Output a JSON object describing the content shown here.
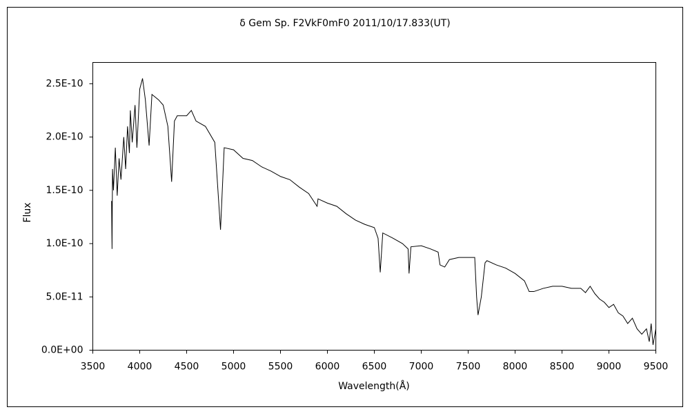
{
  "chart_data": {
    "type": "line",
    "title": "δ Gem   Sp. F2VkF0mF0   2011/10/17.833(UT)",
    "x_label": "Wavelength(Å)",
    "y_label": "Flux",
    "color": "#000000",
    "x": [
      3700,
      3705,
      3710,
      3720,
      3740,
      3760,
      3780,
      3800,
      3830,
      3850,
      3870,
      3890,
      3900,
      3920,
      3950,
      3970,
      4000,
      4030,
      4060,
      4100,
      4130,
      4200,
      4250,
      4300,
      4340,
      4370,
      4400,
      4500,
      4550,
      4600,
      4700,
      4800,
      4861,
      4900,
      5000,
      5100,
      5200,
      5300,
      5400,
      5500,
      5600,
      5700,
      5800,
      5890,
      5900,
      6000,
      6100,
      6200,
      6300,
      6400,
      6500,
      6540,
      6563,
      6590,
      6700,
      6800,
      6860,
      6870,
      6890,
      7000,
      7100,
      7180,
      7200,
      7250,
      7300,
      7400,
      7500,
      7570,
      7590,
      7605,
      7640,
      7680,
      7700,
      7800,
      7900,
      8000,
      8100,
      8150,
      8200,
      8300,
      8400,
      8500,
      8600,
      8700,
      8750,
      8800,
      8850,
      8900,
      8950,
      9000,
      9050,
      9100,
      9150,
      9200,
      9250,
      9300,
      9350,
      9400,
      9430,
      9450,
      9470,
      9500
    ],
    "values": [
      1.4e-10,
      9.5e-11,
      1.7e-10,
      1.5e-10,
      1.9e-10,
      1.45e-10,
      1.8e-10,
      1.6e-10,
      2e-10,
      1.7e-10,
      2.1e-10,
      1.85e-10,
      2.25e-10,
      1.95e-10,
      2.3e-10,
      1.9e-10,
      2.45e-10,
      2.55e-10,
      2.35e-10,
      1.92e-10,
      2.4e-10,
      2.35e-10,
      2.3e-10,
      2.1e-10,
      1.58e-10,
      2.15e-10,
      2.2e-10,
      2.2e-10,
      2.25e-10,
      2.15e-10,
      2.1e-10,
      1.95e-10,
      1.13e-10,
      1.9e-10,
      1.88e-10,
      1.8e-10,
      1.78e-10,
      1.72e-10,
      1.68e-10,
      1.63e-10,
      1.6e-10,
      1.53e-10,
      1.47e-10,
      1.35e-10,
      1.42e-10,
      1.38e-10,
      1.35e-10,
      1.28e-10,
      1.22e-10,
      1.18e-10,
      1.15e-10,
      1.05e-10,
      7.3e-11,
      1.1e-10,
      1.05e-10,
      1e-10,
      9.5e-11,
      7.2e-11,
      9.7e-11,
      9.8e-11,
      9.5e-11,
      9.2e-11,
      8e-11,
      7.8e-11,
      8.5e-11,
      8.7e-11,
      8.7e-11,
      8.7e-11,
      5e-11,
      3.3e-11,
      5e-11,
      8.2e-11,
      8.4e-11,
      8e-11,
      7.7e-11,
      7.2e-11,
      6.5e-11,
      5.5e-11,
      5.5e-11,
      5.8e-11,
      6e-11,
      6e-11,
      5.8e-11,
      5.8e-11,
      5.4e-11,
      6e-11,
      5.3e-11,
      4.8e-11,
      4.5e-11,
      4e-11,
      4.3e-11,
      3.5e-11,
      3.2e-11,
      2.5e-11,
      3e-11,
      2e-11,
      1.5e-11,
      2e-11,
      8e-12,
      2.5e-11,
      5e-12,
      2e-11
    ],
    "xlim": [
      3500,
      9500
    ],
    "xticks": [
      3500,
      4000,
      4500,
      5000,
      5500,
      6000,
      6500,
      7000,
      7500,
      8000,
      8500,
      9000,
      9500
    ],
    "ylim": [
      0,
      2.7e-10
    ],
    "yticks": [
      {
        "value": 0,
        "label": "0.0E+00"
      },
      {
        "value": 5e-11,
        "label": "5.0E-11"
      },
      {
        "value": 1e-10,
        "label": "1.0E-10"
      },
      {
        "value": 1.5e-10,
        "label": "1.5E-10"
      },
      {
        "value": 2e-10,
        "label": "2.0E-10"
      },
      {
        "value": 2.5e-10,
        "label": "2.5E-10"
      }
    ],
    "grid": false
  }
}
